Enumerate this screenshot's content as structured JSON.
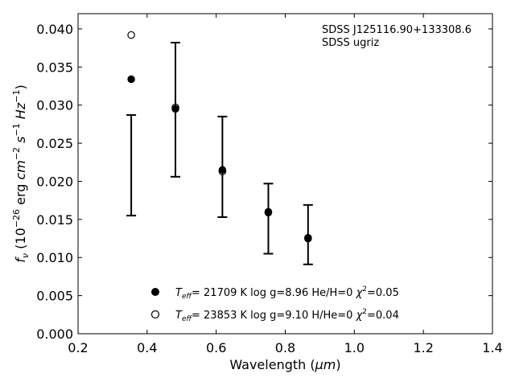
{
  "chart_data": {
    "type": "scatter",
    "xlabel_main": "Wavelength (",
    "xlabel_mu": "μm",
    "xlabel_end": ")",
    "ylabel": "f_ν (10^-26 erg cm^-2 s^-1 Hz^-1)",
    "xlim": [
      0.2,
      1.4
    ],
    "ylim": [
      0.0,
      0.042
    ],
    "xticks": [
      0.2,
      0.4,
      0.6,
      0.8,
      1.0,
      1.2,
      1.4
    ],
    "xtick_labels": [
      "0.2",
      "0.4",
      "0.6",
      "0.8",
      "1.0",
      "1.2",
      "1.4"
    ],
    "yticks": [
      0.0,
      0.005,
      0.01,
      0.015,
      0.02,
      0.025,
      0.03,
      0.035,
      0.04
    ],
    "ytick_labels": [
      "0.000",
      "0.005",
      "0.010",
      "0.015",
      "0.020",
      "0.025",
      "0.030",
      "0.035",
      "0.040"
    ],
    "annotations": [
      "SDSS J125116.90+133308.6",
      "SDSS ugriz"
    ],
    "observed": {
      "x": [
        0.354,
        0.482,
        0.618,
        0.751,
        0.866
      ],
      "y": [
        0.0221,
        0.0294,
        0.0219,
        0.0151,
        0.013
      ],
      "yerr": [
        0.0066,
        0.0088,
        0.0066,
        0.0046,
        0.0039
      ]
    },
    "series": [
      {
        "name": "T_eff= 21709 K  log g=8.96  He/H=0  χ²=0.05",
        "marker": "filled-circle",
        "x": [
          0.354,
          0.482,
          0.618,
          0.751,
          0.866
        ],
        "y": [
          0.0334,
          0.0295,
          0.0215,
          0.016,
          0.0126
        ]
      },
      {
        "name": "T_eff= 23853 K  log g=9.10  H/He=0  χ²=0.04",
        "marker": "open-circle",
        "x": [
          0.354,
          0.482,
          0.618,
          0.751,
          0.866
        ],
        "y": [
          0.0392,
          0.0297,
          0.0213,
          0.0159,
          0.0125
        ]
      }
    ],
    "legend_location": "bottom-center",
    "grid": false
  }
}
